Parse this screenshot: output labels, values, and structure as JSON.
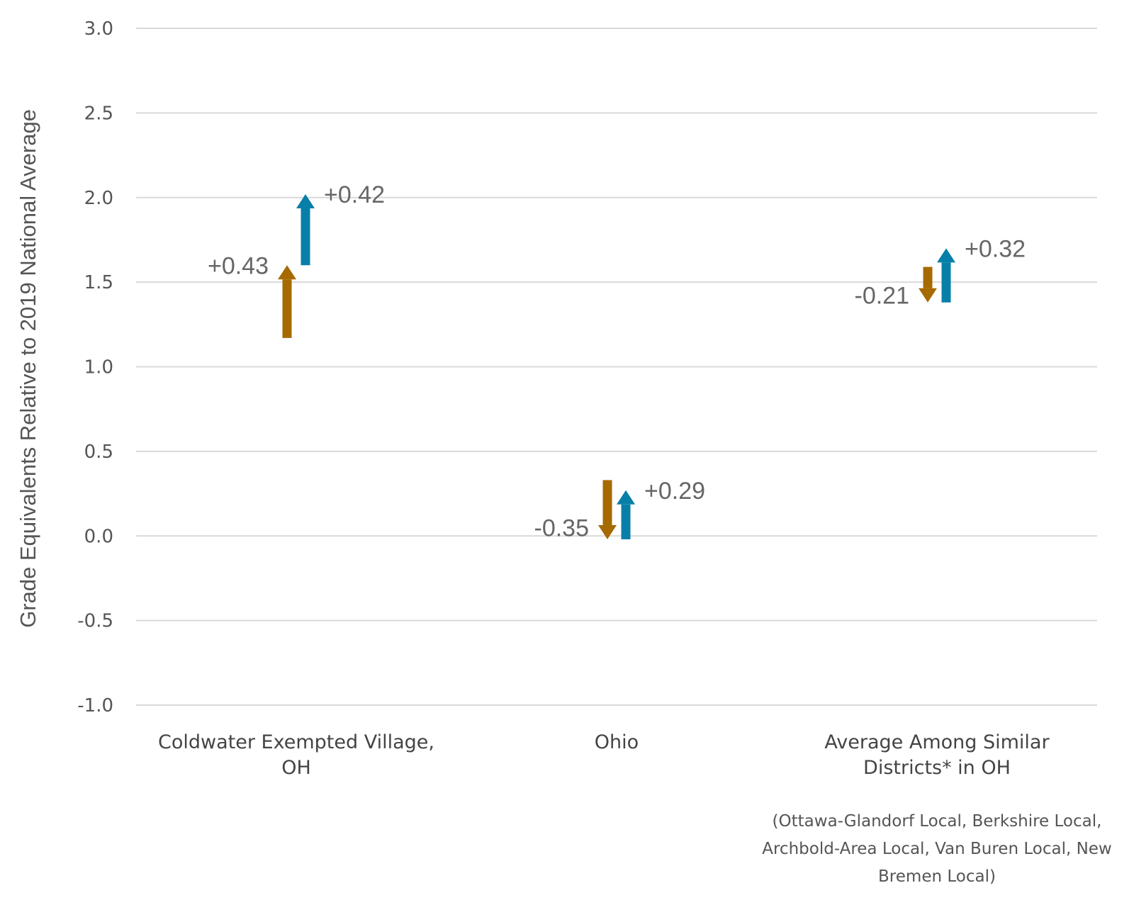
{
  "chart_data": {
    "type": "arrow",
    "ylabel": "Grade Equivalents Relative to 2019 National Average",
    "ylim": [
      -1.0,
      3.0
    ],
    "yticks": [
      "3.0",
      "2.5",
      "2.0",
      "1.5",
      "1.0",
      "0.5",
      "0.0",
      "-0.5",
      "-1.0"
    ],
    "grid": true,
    "colors": {
      "first_change": "#A66A00",
      "second_change": "#087FA8"
    },
    "categories": [
      {
        "label_lines": [
          "Coldwater Exempted Village,",
          "OH"
        ],
        "note_lines": [],
        "changes": [
          {
            "from": 1.17,
            "to": 1.6,
            "label": "+0.43"
          },
          {
            "from": 1.6,
            "to": 2.02,
            "label": "+0.42"
          }
        ]
      },
      {
        "label_lines": [
          "Ohio"
        ],
        "note_lines": [],
        "changes": [
          {
            "from": 0.33,
            "to": -0.02,
            "label": "-0.35"
          },
          {
            "from": -0.02,
            "to": 0.27,
            "label": "+0.29"
          }
        ]
      },
      {
        "label_lines": [
          "Average Among Similar",
          "Districts* in OH"
        ],
        "note_lines": [
          "(Ottawa-Glandorf Local, Berkshire Local,",
          "Archbold-Area Local, Van Buren Local, New",
          "Bremen Local)"
        ],
        "changes": [
          {
            "from": 1.59,
            "to": 1.38,
            "label": "-0.21"
          },
          {
            "from": 1.38,
            "to": 1.7,
            "label": "+0.32"
          }
        ]
      }
    ]
  }
}
